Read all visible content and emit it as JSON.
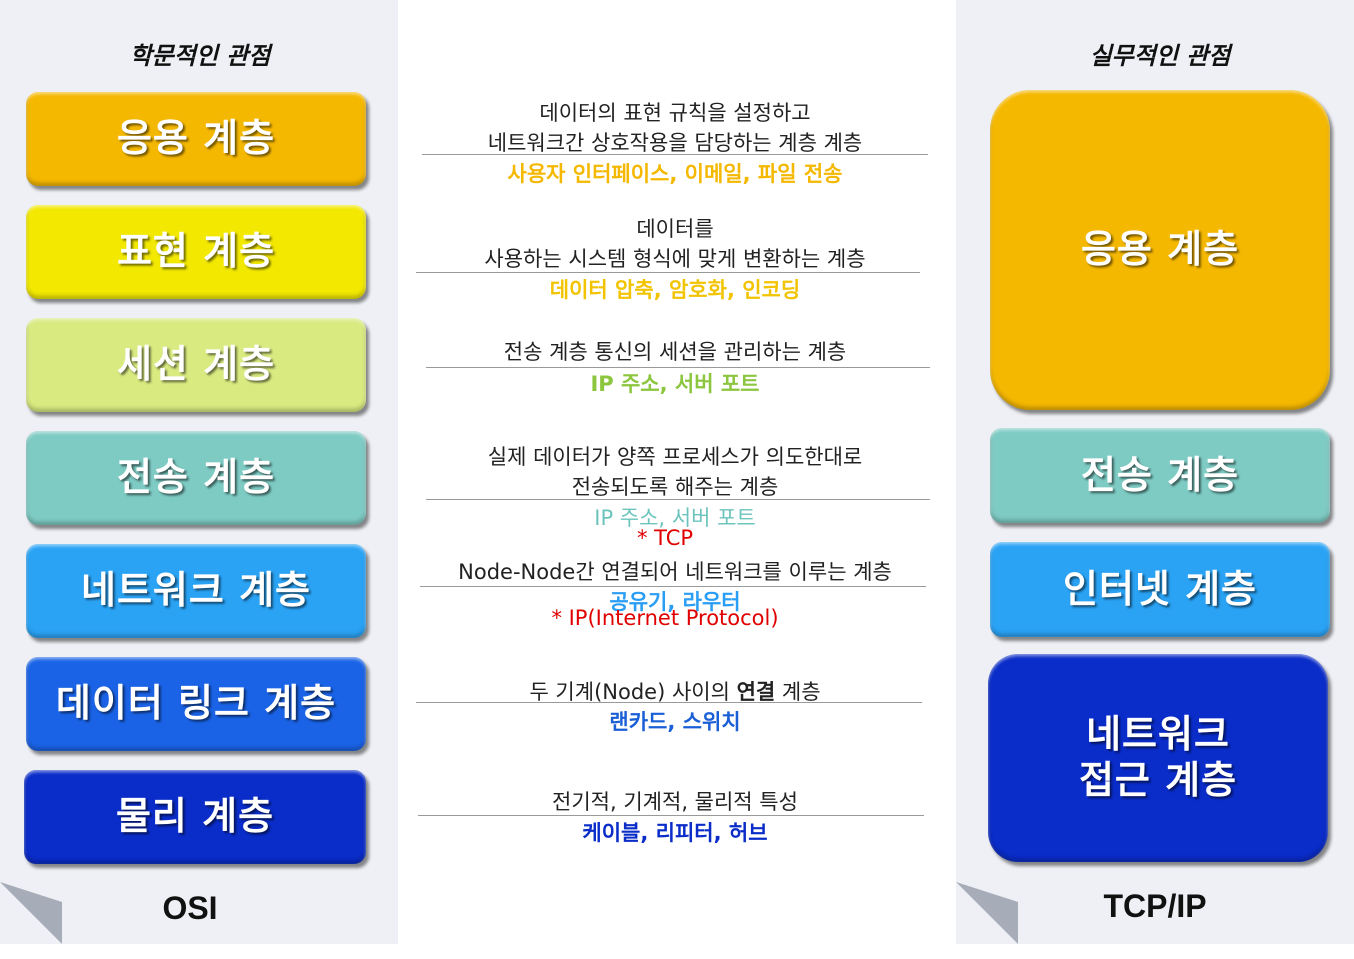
{
  "left": {
    "heading": "학문적인 관점",
    "footer": "OSI",
    "layers": [
      {
        "label": "응용 계층",
        "color": "#f5b800"
      },
      {
        "label": "표현 계층",
        "color": "#f2e800"
      },
      {
        "label": "세션 계층",
        "color": "#d9ea80"
      },
      {
        "label": "전송 계층",
        "color": "#7ecbc4"
      },
      {
        "label": "네트워크 계층",
        "color": "#2aa3f5"
      },
      {
        "label": "데이터 링크 계층",
        "color": "#1a63e6"
      },
      {
        "label": "물리 계층",
        "color": "#0a2cc8"
      }
    ]
  },
  "right": {
    "heading": "실무적인 관점",
    "footer": "TCP/IP",
    "layers": [
      {
        "label": "응용 계층",
        "color": "#f5b800"
      },
      {
        "label": "전송 계층",
        "color": "#7ecbc4"
      },
      {
        "label": "인터넷 계층",
        "color": "#2aa3f5"
      },
      {
        "label": "네트워크 접근 계층",
        "line1": "네트워크",
        "line2": "접근 계층",
        "color": "#0a2cc8"
      }
    ]
  },
  "descriptions": [
    {
      "line1": "데이터의 표현 규칙을 설정하고",
      "line2": "네트워크간 상호작용을 담당하는 계층 계층",
      "examples": "사용자 인터페이스, 이메일, 파일 전송",
      "example_color": "#f5b800"
    },
    {
      "line1": "데이터를",
      "line2": "사용하는 시스템 형식에 맞게 변환하는 계층",
      "examples": "데이터 압축, 암호화, 인코딩",
      "example_color": "#f2c400"
    },
    {
      "line1": "전송 계층 통신의 세션을 관리하는 계층",
      "examples": "IP 주소, 서버 포트",
      "example_color": "#8cc63f"
    },
    {
      "line1": "실제 데이터가 양쪽 프로세스가 의도한대로",
      "line2": "전송되도록 해주는 계층",
      "examples": "IP 주소, 서버 포트",
      "example_color": "#6cc4bd",
      "note": "* TCP"
    },
    {
      "line1": "Node-Node간 연결되어 네트워크를 이루는 계층",
      "examples": "공유기, 라우터",
      "example_color": "#2a9df4",
      "note": "* IP(Internet Protocol)"
    },
    {
      "line1_pre": "두 기계(Node) 사이의 ",
      "line1_bold": "연결",
      "line1_post": " 계층",
      "examples": "랜카드, 스위치",
      "example_color": "#1a5fd6"
    },
    {
      "line1": "전기적, 기계적, 물리적 특성",
      "examples": "케이블, 리피터, 허브",
      "example_color": "#0a2cc8"
    }
  ]
}
